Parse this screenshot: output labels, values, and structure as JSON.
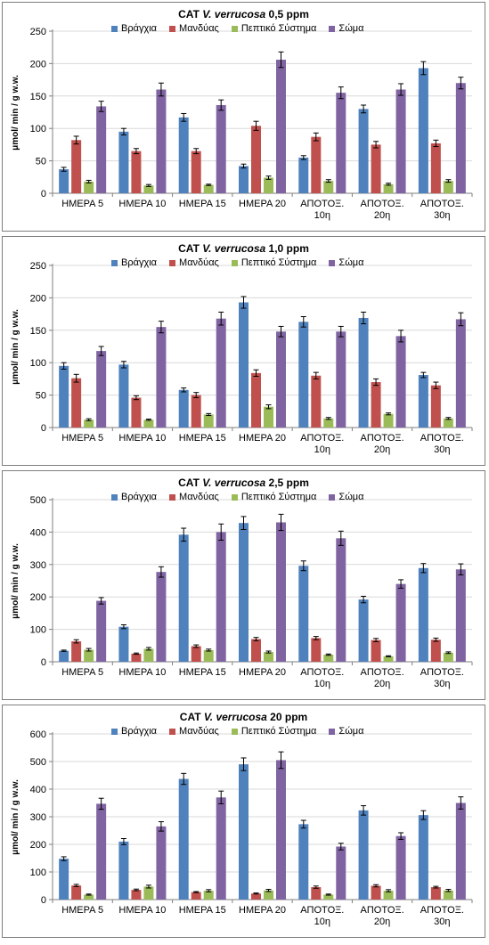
{
  "legend": [
    "Βράγχια",
    "Μανδύας",
    "Πεπτικό Σύστημα",
    "Σώμα"
  ],
  "colors": [
    "#4f81bd",
    "#c0504d",
    "#9bbb59",
    "#8064a2"
  ],
  "categories": [
    [
      "ΗΜΕΡΑ 5"
    ],
    [
      "ΗΜΕΡΑ 10"
    ],
    [
      "ΗΜΕΡΑ 15"
    ],
    [
      "ΗΜΕΡΑ 20"
    ],
    [
      "ΑΠΟΤΟΞ.",
      "10η"
    ],
    [
      "ΑΠΟΤΟΞ.",
      "20η"
    ],
    [
      "ΑΠΟΤΟΞ.",
      "30η"
    ]
  ],
  "ylabel": "μmol/ min / g w.w.",
  "chart_data": [
    {
      "type": "bar",
      "title_prefix": "CAT",
      "title_species": "V. verrucosa",
      "title_suffix": "0,5 ppm",
      "ylim": [
        0,
        250
      ],
      "ticks": [
        0,
        50,
        100,
        150,
        200,
        250
      ],
      "series": [
        {
          "name": "Βράγχια",
          "values": [
            37,
            95,
            117,
            42,
            55,
            130,
            193
          ],
          "errors": [
            3,
            5,
            6,
            3,
            3,
            6,
            10
          ]
        },
        {
          "name": "Μανδύας",
          "values": [
            82,
            65,
            65,
            104,
            87,
            75,
            77
          ],
          "errors": [
            6,
            4,
            4,
            7,
            6,
            5,
            5
          ]
        },
        {
          "name": "Πεπτικό Σύστημα",
          "values": [
            18,
            12,
            13,
            24,
            19,
            14,
            19
          ],
          "errors": [
            2,
            1.5,
            1,
            2.5,
            2,
            1.5,
            2
          ]
        },
        {
          "name": "Σώμα",
          "values": [
            134,
            160,
            136,
            206,
            155,
            160,
            170
          ],
          "errors": [
            8,
            10,
            8,
            12,
            9,
            9,
            9
          ]
        }
      ]
    },
    {
      "type": "bar",
      "title_prefix": "CAT",
      "title_species": "V. verrucosa",
      "title_suffix": "1,0 ppm",
      "ylim": [
        0,
        250
      ],
      "ticks": [
        0,
        50,
        100,
        150,
        200,
        250
      ],
      "series": [
        {
          "name": "Βράγχια",
          "values": [
            95,
            97,
            58,
            193,
            163,
            169,
            81
          ],
          "errors": [
            5,
            5,
            3,
            9,
            8,
            9,
            4
          ]
        },
        {
          "name": "Μανδύας",
          "values": [
            76,
            46,
            50,
            84,
            80,
            70,
            65
          ],
          "errors": [
            6,
            3,
            4,
            5,
            5,
            5,
            5
          ]
        },
        {
          "name": "Πεπτικό Σύστημα",
          "values": [
            12,
            12,
            20,
            32,
            14,
            21,
            14
          ],
          "errors": [
            1.5,
            1,
            1.5,
            3,
            1.5,
            1.5,
            1.5
          ]
        },
        {
          "name": "Σώμα",
          "values": [
            118,
            155,
            168,
            148,
            148,
            141,
            167
          ],
          "errors": [
            7,
            9,
            10,
            8,
            8,
            9,
            10
          ]
        }
      ]
    },
    {
      "type": "bar",
      "title_prefix": "CAT",
      "title_species": "V. verrucosa",
      "title_suffix": "2,5 ppm",
      "ylim": [
        0,
        500
      ],
      "ticks": [
        0,
        100,
        200,
        300,
        400,
        500
      ],
      "series": [
        {
          "name": "Βράγχια",
          "values": [
            34,
            108,
            392,
            428,
            296,
            192,
            289
          ],
          "errors": [
            2,
            6,
            20,
            20,
            15,
            10,
            14
          ]
        },
        {
          "name": "Μανδύας",
          "values": [
            63,
            25,
            48,
            70,
            73,
            67,
            68
          ],
          "errors": [
            5,
            2,
            4,
            5,
            5,
            5,
            5
          ]
        },
        {
          "name": "Πεπτικό Σύστημα",
          "values": [
            37,
            40,
            36,
            30,
            22,
            17,
            28
          ],
          "errors": [
            4,
            4,
            3,
            3,
            2,
            1.5,
            2.5
          ]
        },
        {
          "name": "Σώμα",
          "values": [
            188,
            277,
            400,
            430,
            381,
            240,
            285
          ],
          "errors": [
            10,
            16,
            25,
            25,
            22,
            13,
            17
          ]
        }
      ]
    },
    {
      "type": "bar",
      "title_prefix": "CAT",
      "title_species": "V. verrucosa",
      "title_suffix": "20 ppm",
      "ylim": [
        0,
        600
      ],
      "ticks": [
        0,
        100,
        200,
        300,
        400,
        500,
        600
      ],
      "series": [
        {
          "name": "Βράγχια",
          "values": [
            148,
            210,
            437,
            490,
            273,
            323,
            306
          ],
          "errors": [
            7,
            11,
            20,
            23,
            14,
            17,
            16
          ]
        },
        {
          "name": "Μανδύας",
          "values": [
            51,
            35,
            27,
            22,
            45,
            50,
            45
          ],
          "errors": [
            4,
            3,
            2,
            2,
            4,
            4,
            3
          ]
        },
        {
          "name": "Πεπτικό Σύστημα",
          "values": [
            18,
            47,
            32,
            33,
            18,
            32,
            33
          ],
          "errors": [
            2,
            5,
            4,
            4,
            2,
            4,
            4
          ]
        },
        {
          "name": "Σώμα",
          "values": [
            347,
            265,
            370,
            505,
            192,
            230,
            350
          ],
          "errors": [
            20,
            17,
            23,
            30,
            12,
            12,
            22
          ]
        }
      ]
    }
  ]
}
